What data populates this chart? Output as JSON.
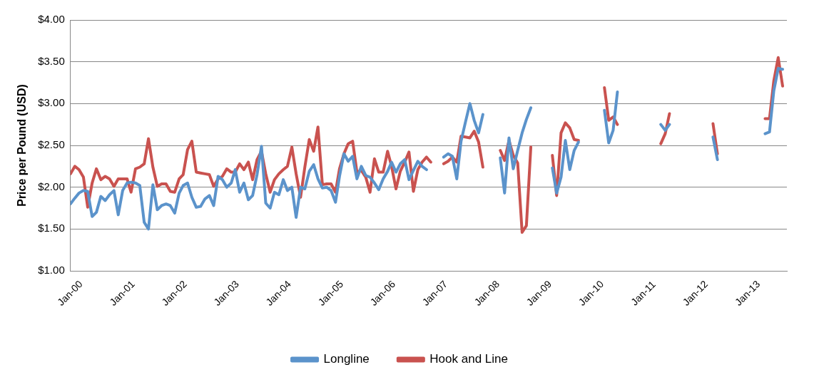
{
  "chart_data": {
    "type": "line",
    "ylabel": "Price per Pound (USD)",
    "x": [
      "2000-01",
      "2000-02",
      "2000-03",
      "2000-04",
      "2000-05",
      "2000-06",
      "2000-07",
      "2000-08",
      "2000-09",
      "2000-10",
      "2000-11",
      "2000-12",
      "2001-01",
      "2001-02",
      "2001-03",
      "2001-04",
      "2001-05",
      "2001-06",
      "2001-07",
      "2001-08",
      "2001-09",
      "2001-10",
      "2001-11",
      "2001-12",
      "2002-01",
      "2002-02",
      "2002-03",
      "2002-04",
      "2002-05",
      "2002-06",
      "2002-07",
      "2002-08",
      "2002-09",
      "2002-10",
      "2002-11",
      "2002-12",
      "2003-01",
      "2003-02",
      "2003-03",
      "2003-04",
      "2003-05",
      "2003-06",
      "2003-07",
      "2003-08",
      "2003-09",
      "2003-10",
      "2003-11",
      "2003-12",
      "2004-01",
      "2004-02",
      "2004-03",
      "2004-04",
      "2004-05",
      "2004-06",
      "2004-07",
      "2004-08",
      "2004-09",
      "2004-10",
      "2004-11",
      "2004-12",
      "2005-01",
      "2005-02",
      "2005-03",
      "2005-04",
      "2005-05",
      "2005-06",
      "2005-07",
      "2005-08",
      "2005-09",
      "2005-10",
      "2005-11",
      "2005-12",
      "2006-01",
      "2006-02",
      "2006-03",
      "2006-04",
      "2006-05",
      "2006-06",
      "2006-07",
      "2006-08",
      "2006-09",
      "2006-10",
      "2006-11",
      "2006-12",
      "2007-01",
      "2007-02",
      "2007-03",
      "2007-04",
      "2007-05",
      "2007-06",
      "2007-07",
      "2007-08",
      "2007-09",
      "2007-10",
      "2007-11",
      "2007-12",
      "2008-01",
      "2008-02",
      "2008-03",
      "2008-04",
      "2008-05",
      "2008-06",
      "2008-07",
      "2008-08",
      "2008-09",
      "2008-10",
      "2008-11",
      "2008-12",
      "2009-01",
      "2009-02",
      "2009-03",
      "2009-04",
      "2009-05",
      "2009-06",
      "2009-07",
      "2009-08",
      "2009-09",
      "2009-10",
      "2009-11",
      "2009-12",
      "2010-01",
      "2010-02",
      "2010-03",
      "2010-04",
      "2010-05",
      "2010-06",
      "2010-07",
      "2010-08",
      "2010-09",
      "2010-10",
      "2010-11",
      "2010-12",
      "2011-01",
      "2011-02",
      "2011-03",
      "2011-04",
      "2011-05",
      "2011-06",
      "2011-07",
      "2011-08",
      "2011-09",
      "2011-10",
      "2011-11",
      "2011-12",
      "2012-01",
      "2012-02",
      "2012-03",
      "2012-04",
      "2012-05",
      "2012-06",
      "2012-07",
      "2012-08",
      "2012-09",
      "2012-10",
      "2012-11",
      "2012-12",
      "2013-01",
      "2013-02",
      "2013-03",
      "2013-04",
      "2013-05",
      "2013-06",
      "2013-07",
      "2013-08",
      "2013-09"
    ],
    "series": [
      {
        "name": "Longline",
        "color": "#5b93cb",
        "values": [
          1.8,
          1.87,
          1.93,
          1.96,
          1.95,
          1.65,
          1.7,
          1.89,
          1.84,
          1.91,
          1.96,
          1.67,
          1.96,
          2.05,
          2.06,
          2.05,
          2.02,
          1.58,
          1.5,
          2.03,
          1.73,
          1.78,
          1.8,
          1.78,
          1.69,
          1.93,
          2.02,
          2.05,
          1.88,
          1.76,
          1.77,
          1.86,
          1.9,
          1.78,
          2.13,
          2.09,
          2.0,
          2.05,
          2.21,
          1.94,
          2.05,
          1.85,
          1.9,
          2.15,
          2.49,
          1.81,
          1.75,
          1.94,
          1.91,
          2.09,
          1.96,
          2.0,
          1.64,
          2.0,
          1.98,
          2.19,
          2.27,
          2.1,
          1.99,
          2.0,
          1.96,
          1.82,
          2.13,
          2.4,
          2.31,
          2.37,
          2.1,
          2.25,
          2.14,
          2.12,
          2.05,
          1.97,
          2.1,
          2.19,
          2.3,
          2.18,
          2.28,
          2.33,
          2.09,
          2.2,
          2.31,
          2.25,
          2.21,
          null,
          null,
          null,
          2.36,
          2.4,
          2.37,
          2.1,
          2.55,
          2.78,
          3.0,
          2.8,
          2.65,
          2.87,
          null,
          null,
          null,
          2.35,
          1.93,
          2.59,
          2.22,
          2.44,
          2.65,
          2.81,
          2.95,
          null,
          null,
          null,
          null,
          2.23,
          1.93,
          2.12,
          2.56,
          2.21,
          2.44,
          2.54,
          null,
          null,
          null,
          null,
          null,
          2.92,
          2.53,
          2.68,
          3.14,
          null,
          null,
          null,
          null,
          null,
          null,
          null,
          null,
          null,
          2.75,
          2.68,
          2.75,
          null,
          null,
          null,
          null,
          null,
          null,
          null,
          null,
          null,
          2.6,
          2.33,
          null,
          null,
          null,
          null,
          null,
          null,
          null,
          null,
          null,
          null,
          2.64,
          2.66,
          3.15,
          3.42,
          3.41
        ]
      },
      {
        "name": "Hook and Line",
        "color": "#c9524f",
        "values": [
          2.16,
          2.25,
          2.21,
          2.12,
          1.76,
          2.05,
          2.22,
          2.09,
          2.13,
          2.1,
          2.01,
          2.1,
          2.1,
          2.1,
          1.94,
          2.22,
          2.24,
          2.28,
          2.58,
          2.24,
          2.01,
          2.04,
          2.04,
          1.95,
          1.94,
          2.1,
          2.15,
          2.45,
          2.55,
          2.18,
          2.17,
          2.16,
          2.15,
          2.01,
          2.1,
          2.13,
          2.22,
          2.18,
          2.18,
          2.28,
          2.21,
          2.3,
          2.09,
          2.33,
          2.43,
          2.16,
          1.94,
          2.09,
          2.16,
          2.21,
          2.25,
          2.48,
          2.16,
          1.88,
          2.24,
          2.57,
          2.43,
          2.72,
          2.03,
          2.04,
          2.04,
          1.94,
          2.22,
          2.4,
          2.52,
          2.55,
          2.18,
          2.2,
          2.12,
          1.94,
          2.34,
          2.18,
          2.18,
          2.43,
          2.25,
          1.98,
          2.19,
          2.3,
          2.42,
          1.95,
          2.21,
          2.3,
          2.36,
          2.3,
          null,
          null,
          2.28,
          2.31,
          2.36,
          2.3,
          2.61,
          2.6,
          2.59,
          2.67,
          2.54,
          2.24,
          null,
          null,
          null,
          2.44,
          2.32,
          2.56,
          2.38,
          2.29,
          1.46,
          1.54,
          2.48,
          null,
          null,
          null,
          null,
          2.38,
          1.9,
          2.65,
          2.77,
          2.71,
          2.57,
          2.56,
          null,
          null,
          null,
          null,
          null,
          3.19,
          2.8,
          2.84,
          2.75,
          null,
          null,
          null,
          null,
          null,
          null,
          null,
          null,
          null,
          2.52,
          2.64,
          2.88,
          null,
          null,
          null,
          null,
          null,
          null,
          null,
          null,
          null,
          2.76,
          2.4,
          null,
          null,
          null,
          null,
          null,
          null,
          null,
          null,
          null,
          null,
          2.82,
          2.82,
          3.27,
          3.55,
          3.21
        ]
      }
    ],
    "xlim": [
      "2000-01",
      "2013-10"
    ],
    "xticks": [
      {
        "value": "2000-01",
        "label": "Jan-00"
      },
      {
        "value": "2001-01",
        "label": "Jan-01"
      },
      {
        "value": "2002-01",
        "label": "Jan-02"
      },
      {
        "value": "2003-01",
        "label": "Jan-03"
      },
      {
        "value": "2004-01",
        "label": "Jan-04"
      },
      {
        "value": "2005-01",
        "label": "Jan-05"
      },
      {
        "value": "2006-01",
        "label": "Jan-06"
      },
      {
        "value": "2007-01",
        "label": "Jan-07"
      },
      {
        "value": "2008-01",
        "label": "Jan-08"
      },
      {
        "value": "2009-01",
        "label": "Jan-09"
      },
      {
        "value": "2010-01",
        "label": "Jan-10"
      },
      {
        "value": "2011-01",
        "label": "Jan-11"
      },
      {
        "value": "2012-01",
        "label": "Jan-12"
      },
      {
        "value": "2013-01",
        "label": "Jan-13"
      }
    ],
    "ylim": [
      1,
      4
    ],
    "yticks": [
      {
        "value": 1,
        "label": "$1.00"
      },
      {
        "value": 1.5,
        "label": "$1.50"
      },
      {
        "value": 2,
        "label": "$2.00"
      },
      {
        "value": 2.5,
        "label": "$2.50"
      },
      {
        "value": 3,
        "label": "$3.00"
      },
      {
        "value": 3.5,
        "label": "$3.50"
      },
      {
        "value": 4,
        "label": "$4.00"
      }
    ],
    "grid": "y",
    "legend": "bottom",
    "marker": "none"
  }
}
